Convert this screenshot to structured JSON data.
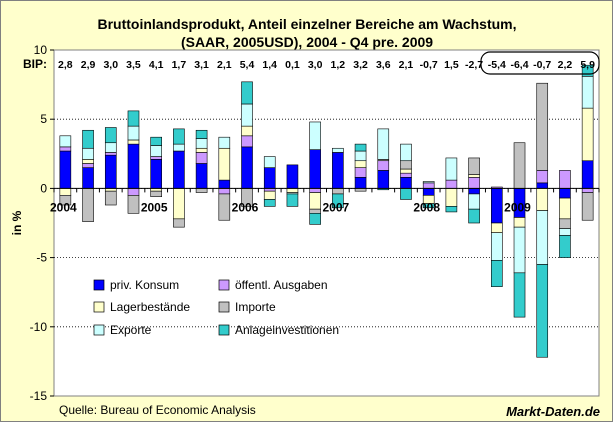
{
  "chart_data": {
    "type": "bar",
    "stacked": true,
    "title": "Bruttoinlandsprodukt, Anteil einzelner Bereiche am Wachstum,",
    "subtitle": "(SAAR, 2005USD), 2004 - Q4 pre. 2009",
    "ylabel": "in %",
    "ylim": [
      -15,
      10
    ],
    "yticks": [
      10,
      5,
      0,
      -5,
      -10,
      -15
    ],
    "bip_label": "BIP:",
    "bip": [
      "2,8",
      "2,9",
      "3,0",
      "3,5",
      "4,1",
      "1,7",
      "3,1",
      "2,1",
      "5,4",
      "1,4",
      "0,1",
      "3,0",
      "1,2",
      "3,2",
      "3,6",
      "2,1",
      "-0,7",
      "1,5",
      "-2,7",
      "-5,4",
      "-6,4",
      "-0,7",
      "2,2",
      "5,9"
    ],
    "year_labels": [
      {
        "label": "2004",
        "index": 0
      },
      {
        "label": "2005",
        "index": 4
      },
      {
        "label": "2006",
        "index": 8
      },
      {
        "label": "2007",
        "index": 12
      },
      {
        "label": "2008",
        "index": 16
      },
      {
        "label": "2009",
        "index": 20
      }
    ],
    "series": [
      {
        "name": "priv. Konsum",
        "color": "#0000ff",
        "values": [
          2.7,
          1.5,
          2.4,
          3.2,
          2.1,
          2.7,
          1.8,
          0.6,
          3.0,
          1.5,
          1.7,
          2.8,
          2.6,
          0.8,
          1.3,
          0.8,
          -0.5,
          0.0,
          -0.4,
          -2.5,
          -2.1,
          0.4,
          -0.7,
          2.0
        ]
      },
      {
        "name": "öffentl. Ausgaben",
        "color": "#cc99ff",
        "values": [
          0.3,
          0.3,
          0.2,
          -0.5,
          0.2,
          0.0,
          0.8,
          -0.4,
          0.8,
          -0.2,
          0.0,
          -0.3,
          0.0,
          0.7,
          0.7,
          0.3,
          0.4,
          0.6,
          0.8,
          0.1,
          0.0,
          0.9,
          1.3,
          -0.3
        ]
      },
      {
        "name": "Lagerbestände",
        "color": "#ffffcc",
        "values": [
          -0.5,
          0.3,
          -0.2,
          0.3,
          -0.2,
          -2.2,
          0.3,
          2.3,
          0.7,
          -0.6,
          -0.3,
          -1.2,
          0.0,
          0.5,
          0.0,
          0.3,
          -0.6,
          -1.3,
          0.2,
          -0.7,
          -0.7,
          -1.6,
          -1.5,
          3.8
        ]
      },
      {
        "name": "Importe",
        "color": "#c0c0c0",
        "values": [
          -0.7,
          -2.4,
          -1.0,
          -1.3,
          -0.4,
          -0.6,
          -0.3,
          -1.9,
          -1.3,
          0.0,
          0.0,
          -0.3,
          -0.4,
          -0.2,
          0.1,
          0.6,
          0.0,
          0.0,
          1.2,
          0.0,
          3.3,
          6.3,
          -0.7,
          -2.0
        ]
      },
      {
        "name": "Exporte",
        "color": "#ccffff",
        "values": [
          0.8,
          0.8,
          0.7,
          1.0,
          0.8,
          0.5,
          0.7,
          0.8,
          1.6,
          0.8,
          -0.1,
          2.0,
          0.3,
          0.7,
          2.2,
          1.2,
          0.1,
          1.6,
          -1.1,
          -2.0,
          -3.3,
          -3.9,
          -0.5,
          2.3
        ]
      },
      {
        "name": "Anlageinvestitionen",
        "color": "#33cccc",
        "values": [
          0.0,
          1.3,
          1.1,
          1.1,
          0.6,
          1.1,
          0.6,
          0.0,
          1.6,
          -0.5,
          -0.9,
          -0.8,
          -1.0,
          0.5,
          -0.1,
          -0.8,
          -0.3,
          -0.4,
          -1.0,
          -1.9,
          -3.2,
          -6.7,
          -1.6,
          0.8
        ]
      }
    ]
  },
  "legend": [
    {
      "label": "priv. Konsum",
      "color": "#0000ff"
    },
    {
      "label": "öffentl. Ausgaben",
      "color": "#cc99ff"
    },
    {
      "label": "Lagerbestände",
      "color": "#ffffcc"
    },
    {
      "label": "Importe",
      "color": "#c0c0c0"
    },
    {
      "label": "Exporte",
      "color": "#ccffff"
    },
    {
      "label": "Anlageinvestitionen",
      "color": "#33cccc"
    }
  ],
  "source": "Quelle: Bureau of Economic Analysis",
  "brand": "Markt-Daten.de"
}
